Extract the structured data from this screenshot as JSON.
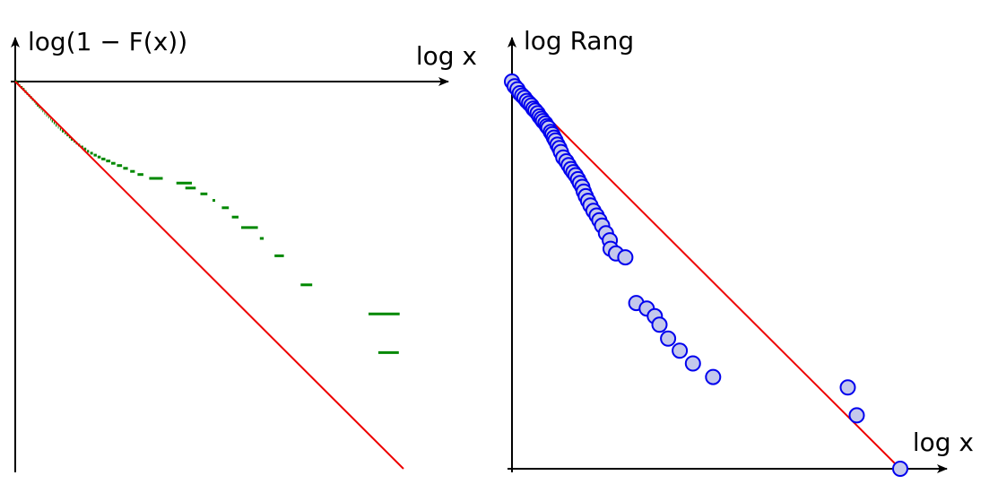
{
  "chart_data": [
    {
      "type": "line",
      "title": "",
      "ylabel": "log(1 − F(x))",
      "xlabel": "log x",
      "grid": false,
      "colors": {
        "step": "#008800",
        "fit": "#ee0000",
        "axis": "#000000"
      },
      "step_segments": [
        [
          0.0,
          0.0,
          0.005
        ],
        [
          0.005,
          0.005,
          0.009
        ],
        [
          0.009,
          0.01,
          0.013
        ],
        [
          0.014,
          0.015,
          0.019
        ],
        [
          0.019,
          0.02,
          0.024
        ],
        [
          0.024,
          0.026,
          0.029
        ],
        [
          0.029,
          0.031,
          0.033
        ],
        [
          0.034,
          0.036,
          0.038
        ],
        [
          0.038,
          0.041,
          0.043
        ],
        [
          0.043,
          0.046,
          0.047
        ],
        [
          0.048,
          0.051,
          0.052
        ],
        [
          0.052,
          0.056,
          0.056
        ],
        [
          0.056,
          0.061,
          0.06
        ],
        [
          0.061,
          0.066,
          0.064
        ],
        [
          0.066,
          0.071,
          0.068
        ],
        [
          0.07,
          0.076,
          0.072
        ],
        [
          0.075,
          0.082,
          0.077
        ],
        [
          0.08,
          0.087,
          0.082
        ],
        [
          0.085,
          0.092,
          0.087
        ],
        [
          0.09,
          0.097,
          0.092
        ],
        [
          0.094,
          0.102,
          0.097
        ],
        [
          0.099,
          0.107,
          0.102
        ],
        [
          0.104,
          0.113,
          0.107
        ],
        [
          0.11,
          0.118,
          0.112
        ],
        [
          0.115,
          0.123,
          0.118
        ],
        [
          0.12,
          0.128,
          0.125
        ],
        [
          0.127,
          0.133,
          0.13
        ],
        [
          0.132,
          0.138,
          0.136
        ],
        [
          0.138,
          0.143,
          0.142
        ],
        [
          0.143,
          0.149,
          0.148
        ],
        [
          0.15,
          0.154,
          0.154
        ],
        [
          0.156,
          0.159,
          0.16
        ],
        [
          0.162,
          0.164,
          0.167
        ],
        [
          0.17,
          0.169,
          0.175
        ],
        [
          0.177,
          0.174,
          0.183
        ],
        [
          0.185,
          0.18,
          0.19
        ],
        [
          0.193,
          0.185,
          0.2
        ],
        [
          0.202,
          0.19,
          0.21
        ],
        [
          0.212,
          0.195,
          0.22
        ],
        [
          0.222,
          0.2,
          0.232
        ],
        [
          0.234,
          0.205,
          0.245
        ],
        [
          0.247,
          0.211,
          0.258
        ],
        [
          0.262,
          0.217,
          0.275
        ],
        [
          0.278,
          0.224,
          0.29
        ],
        [
          0.296,
          0.232,
          0.308
        ],
        [
          0.315,
          0.24,
          0.33
        ],
        [
          0.345,
          0.25,
          0.38
        ],
        [
          0.415,
          0.262,
          0.455
        ],
        [
          0.438,
          0.275,
          0.465
        ],
        [
          0.477,
          0.29,
          0.495
        ],
        [
          0.508,
          0.307,
          0.515
        ],
        [
          0.532,
          0.326,
          0.55
        ],
        [
          0.558,
          0.35,
          0.575
        ],
        [
          0.582,
          0.377,
          0.625
        ],
        [
          0.63,
          0.405,
          0.64
        ],
        [
          0.668,
          0.45,
          0.692
        ],
        [
          0.735,
          0.525,
          0.765
        ],
        [
          0.91,
          0.6,
          0.99
        ],
        [
          0.935,
          0.7,
          0.988
        ]
      ],
      "fit_line": {
        "from": [
          0,
          0
        ],
        "to": [
          1,
          1
        ]
      }
    },
    {
      "type": "scatter",
      "title": "",
      "ylabel": "log Rang",
      "xlabel": "log x",
      "grid": false,
      "colors": {
        "marker_fill": "#c4c8ec",
        "marker_stroke": "#0000ee",
        "fit": "#ee0000",
        "axis": "#000000"
      },
      "points": [
        [
          0.0,
          0.0
        ],
        [
          0.007,
          0.012
        ],
        [
          0.014,
          0.02
        ],
        [
          0.02,
          0.03
        ],
        [
          0.026,
          0.036
        ],
        [
          0.032,
          0.042
        ],
        [
          0.038,
          0.05
        ],
        [
          0.044,
          0.056
        ],
        [
          0.05,
          0.062
        ],
        [
          0.055,
          0.07
        ],
        [
          0.06,
          0.075
        ],
        [
          0.066,
          0.082
        ],
        [
          0.071,
          0.09
        ],
        [
          0.076,
          0.096
        ],
        [
          0.08,
          0.102
        ],
        [
          0.086,
          0.108
        ],
        [
          0.09,
          0.115
        ],
        [
          0.094,
          0.12
        ],
        [
          0.1,
          0.13
        ],
        [
          0.104,
          0.136
        ],
        [
          0.108,
          0.145
        ],
        [
          0.112,
          0.152
        ],
        [
          0.117,
          0.163
        ],
        [
          0.122,
          0.172
        ],
        [
          0.126,
          0.182
        ],
        [
          0.132,
          0.196
        ],
        [
          0.14,
          0.206
        ],
        [
          0.146,
          0.216
        ],
        [
          0.152,
          0.226
        ],
        [
          0.158,
          0.234
        ],
        [
          0.164,
          0.242
        ],
        [
          0.17,
          0.252
        ],
        [
          0.175,
          0.262
        ],
        [
          0.181,
          0.272
        ],
        [
          0.185,
          0.284
        ],
        [
          0.19,
          0.296
        ],
        [
          0.196,
          0.308
        ],
        [
          0.202,
          0.32
        ],
        [
          0.21,
          0.334
        ],
        [
          0.218,
          0.346
        ],
        [
          0.225,
          0.358
        ],
        [
          0.232,
          0.372
        ],
        [
          0.242,
          0.392
        ],
        [
          0.252,
          0.41
        ],
        [
          0.254,
          0.432
        ],
        [
          0.268,
          0.444
        ],
        [
          0.292,
          0.454
        ],
        [
          0.32,
          0.572
        ],
        [
          0.347,
          0.586
        ],
        [
          0.368,
          0.606
        ],
        [
          0.38,
          0.628
        ],
        [
          0.402,
          0.664
        ],
        [
          0.432,
          0.695
        ],
        [
          0.466,
          0.728
        ],
        [
          0.518,
          0.763
        ],
        [
          0.865,
          0.79
        ],
        [
          0.888,
          0.862
        ],
        [
          1.0,
          1.0
        ]
      ],
      "fit_line": {
        "from": [
          0,
          0
        ],
        "to": [
          1,
          1
        ]
      }
    }
  ]
}
